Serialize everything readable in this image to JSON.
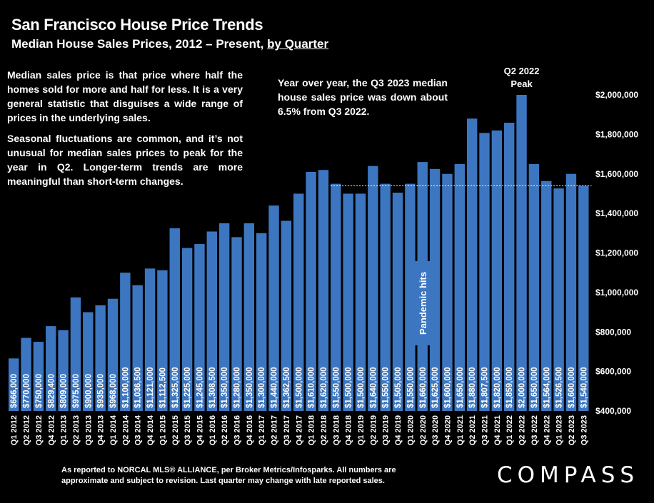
{
  "header": {
    "title": "San Francisco House Price Trends",
    "subtitle_main": "Median House Sales Prices, 2012 – Present, ",
    "subtitle_link": "by Quarter"
  },
  "notes": {
    "definition": "Median sales price is that price where half the homes sold for more and half for less. It is a very general statistic that disguises a wide range of prices in the underlying sales.",
    "seasonal": "Seasonal fluctuations are common, and it’s not unusual for median sales prices to peak for the year in Q2. Longer-term trends are more meaningful than short-term changes.",
    "yoy": "Year over year, the Q3 2023 median house sales price was down about 6.5% from Q3 2022."
  },
  "footer": {
    "source": "As reported to NORCAL MLS® ALLIANCE, per Broker Metrics/Infosparks. All numbers are approximate and subject to revision. Last quarter may change with late reported sales.",
    "logo": "COMPASS"
  },
  "chart_data": {
    "type": "bar",
    "categories": [
      "Q1 2012",
      "Q2 2012",
      "Q3 2012",
      "Q4 2012",
      "Q1 2013",
      "Q2 2013",
      "Q3 2013",
      "Q4 2013",
      "Q1 2014",
      "Q2 2014",
      "Q3 2014",
      "Q4 2014",
      "Q1 2015",
      "Q2 2015",
      "Q3 2015",
      "Q4 2015",
      "Q1 2016",
      "Q2 2016",
      "Q3 2016",
      "Q4 2016",
      "Q1 2017",
      "Q2 2017",
      "Q3 2017",
      "Q4 2017",
      "Q1 2018",
      "Q2 2018",
      "Q3 2018",
      "Q4 2018",
      "Q1 2019",
      "Q2 2019",
      "Q3 2019",
      "Q4 2019",
      "Q1 2020",
      "Q2 2020",
      "Q3 2020",
      "Q4 2020",
      "Q1 2021",
      "Q2 2021",
      "Q3 2021",
      "Q4 2021",
      "Q1 2022",
      "Q2 2022",
      "Q3 2022",
      "Q4 2022",
      "Q1 2023",
      "Q2 2023",
      "Q3 2023"
    ],
    "values": [
      666000,
      770000,
      750000,
      829400,
      809000,
      975000,
      900000,
      935000,
      968000,
      1100000,
      1036500,
      1121000,
      1112500,
      1325000,
      1225000,
      1245000,
      1308500,
      1350000,
      1280000,
      1350000,
      1300000,
      1440000,
      1362500,
      1500000,
      1610000,
      1620000,
      1550000,
      1500000,
      1500000,
      1640000,
      1550000,
      1505000,
      1550000,
      1660000,
      1625000,
      1600000,
      1650000,
      1880000,
      1807500,
      1820000,
      1859000,
      2000000,
      1650000,
      1564000,
      1526500,
      1600000,
      1540000
    ],
    "data_labels": [
      "$666,000",
      "$770,000",
      "$750,000",
      "$829,400",
      "$809,000",
      "$975,000",
      "$900,000",
      "$935,000",
      "$968,000",
      "$1,100,000",
      "$1,036,500",
      "$1,121,000",
      "$1,112,500",
      "$1,325,000",
      "$1,225,000",
      "$1,245,000",
      "$1,308,500",
      "$1,350,000",
      "$1,280,000",
      "$1,350,000",
      "$1,300,000",
      "$1,440,000",
      "$1,362,500",
      "$1,500,000",
      "$1,610,000",
      "$1,620,000",
      "$1,550,000",
      "$1,500,000",
      "$1,500,000",
      "$1,640,000",
      "$1,550,000",
      "$1,505,000",
      "$1,550,000",
      "$1,660,000",
      "$1,625,000",
      "$1,600,000",
      "$1,650,000",
      "$1,880,000",
      "$1,807,500",
      "$1,820,000",
      "$1,859,000",
      "$2,000,000",
      "$1,650,000",
      "$1,564,000",
      "$1,526,500",
      "$1,600,000",
      "$1,540,000"
    ],
    "yticks": [
      "$400,000",
      "$600,000",
      "$800,000",
      "$1,000,000",
      "$1,200,000",
      "$1,400,000",
      "$1,600,000",
      "$1,800,000",
      "$2,000,000"
    ],
    "ylim": [
      400000,
      2100000
    ],
    "reference_line": 1540000,
    "annotations": {
      "peak": [
        "Q2 2022",
        "Peak"
      ],
      "pandemic": "Pandemic hits"
    },
    "colors": {
      "bar": "#3d76c0",
      "background": "#000000",
      "text": "#ffffff"
    },
    "grid": false
  }
}
